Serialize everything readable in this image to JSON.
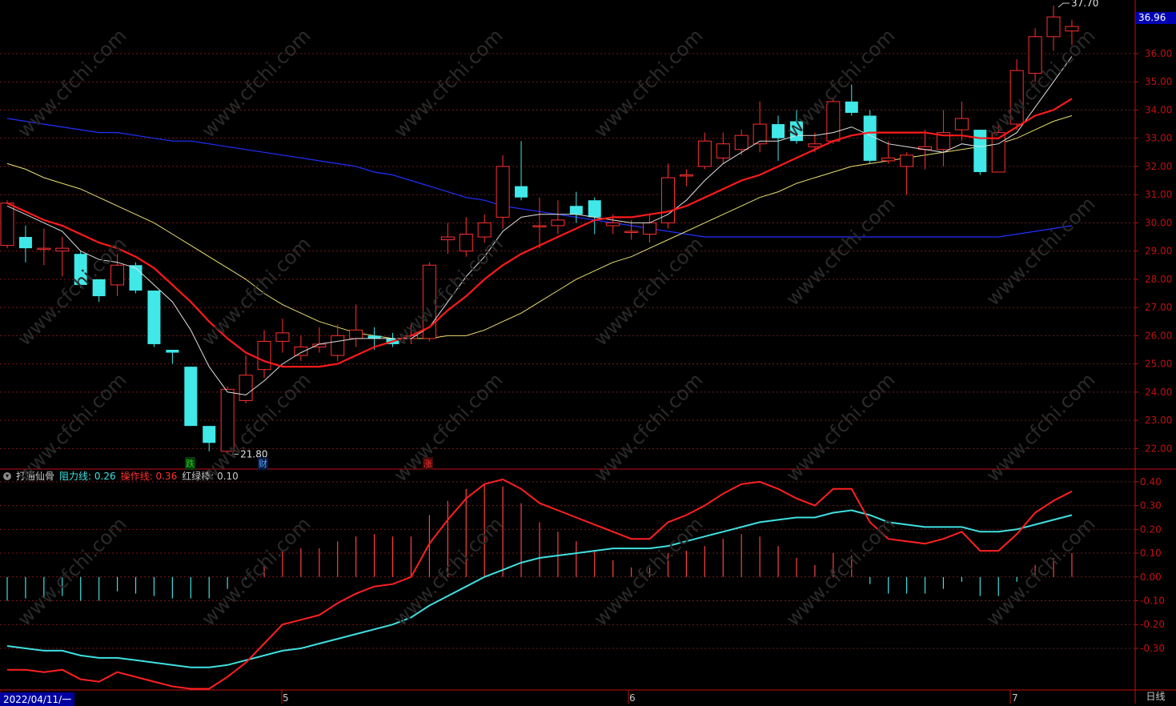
{
  "chart_data": {
    "type": "candlestick",
    "price_axis": {
      "ticks": [
        "22.00",
        "23.00",
        "24.00",
        "25.00",
        "26.00",
        "27.00",
        "28.00",
        "29.00",
        "30.00",
        "31.00",
        "32.00",
        "33.00",
        "34.00",
        "35.00",
        "36.00"
      ],
      "range": [
        21.3,
        37.9
      ]
    },
    "candles": [
      {
        "o": 29.2,
        "c": 30.7,
        "h": 30.8,
        "l": 29.1
      },
      {
        "o": 29.5,
        "c": 29.1,
        "h": 29.9,
        "l": 28.6
      },
      {
        "o": 29.1,
        "c": 29.1,
        "h": 29.8,
        "l": 28.5
      },
      {
        "o": 29.0,
        "c": 29.1,
        "h": 29.5,
        "l": 28.1
      },
      {
        "o": 28.9,
        "c": 27.8,
        "h": 29.0,
        "l": 27.7
      },
      {
        "o": 28.0,
        "c": 27.4,
        "h": 28.0,
        "l": 27.2
      },
      {
        "o": 27.8,
        "c": 28.5,
        "h": 28.9,
        "l": 27.4
      },
      {
        "o": 28.5,
        "c": 27.6,
        "h": 28.6,
        "l": 27.5
      },
      {
        "o": 27.6,
        "c": 25.7,
        "h": 27.6,
        "l": 25.6
      },
      {
        "o": 25.5,
        "c": 25.4,
        "h": 25.5,
        "l": 25.0
      },
      {
        "o": 24.9,
        "c": 22.8,
        "h": 24.9,
        "l": 22.8
      },
      {
        "o": 22.8,
        "c": 22.2,
        "h": 22.8,
        "l": 21.9
      },
      {
        "o": 21.9,
        "c": 24.1,
        "h": 24.2,
        "l": 21.8
      },
      {
        "o": 23.7,
        "c": 24.6,
        "h": 25.3,
        "l": 23.6
      },
      {
        "o": 24.8,
        "c": 25.8,
        "h": 26.2,
        "l": 24.5
      },
      {
        "o": 25.8,
        "c": 26.1,
        "h": 26.6,
        "l": 25.4
      },
      {
        "o": 25.3,
        "c": 25.6,
        "h": 26.0,
        "l": 25.1
      },
      {
        "o": 25.6,
        "c": 25.7,
        "h": 26.3,
        "l": 25.4
      },
      {
        "o": 25.3,
        "c": 26.0,
        "h": 26.4,
        "l": 25.1
      },
      {
        "o": 25.9,
        "c": 26.2,
        "h": 27.1,
        "l": 25.6
      },
      {
        "o": 26.0,
        "c": 25.9,
        "h": 26.3,
        "l": 25.5
      },
      {
        "o": 25.9,
        "c": 25.7,
        "h": 26.1,
        "l": 25.6
      },
      {
        "o": 25.9,
        "c": 26.0,
        "h": 26.4,
        "l": 25.7
      },
      {
        "o": 25.9,
        "c": 28.5,
        "h": 28.6,
        "l": 25.8
      },
      {
        "o": 29.4,
        "c": 29.5,
        "h": 30.0,
        "l": 28.9
      },
      {
        "o": 29.0,
        "c": 29.6,
        "h": 30.2,
        "l": 28.8
      },
      {
        "o": 29.5,
        "c": 30.0,
        "h": 30.3,
        "l": 29.3
      },
      {
        "o": 30.2,
        "c": 32.0,
        "h": 32.4,
        "l": 29.8
      },
      {
        "o": 31.3,
        "c": 30.9,
        "h": 32.9,
        "l": 30.8
      },
      {
        "o": 29.9,
        "c": 29.9,
        "h": 30.9,
        "l": 29.1
      },
      {
        "o": 29.9,
        "c": 30.1,
        "h": 30.8,
        "l": 29.6
      },
      {
        "o": 30.6,
        "c": 30.3,
        "h": 31.1,
        "l": 30.0
      },
      {
        "o": 30.8,
        "c": 30.2,
        "h": 30.9,
        "l": 29.6
      },
      {
        "o": 29.9,
        "c": 30.0,
        "h": 30.3,
        "l": 29.6
      },
      {
        "o": 29.7,
        "c": 29.7,
        "h": 30.1,
        "l": 29.4
      },
      {
        "o": 29.6,
        "c": 30.0,
        "h": 30.3,
        "l": 29.3
      },
      {
        "o": 30.0,
        "c": 31.6,
        "h": 32.1,
        "l": 29.8
      },
      {
        "o": 31.7,
        "c": 31.7,
        "h": 31.9,
        "l": 31.3
      },
      {
        "o": 32.0,
        "c": 32.9,
        "h": 33.2,
        "l": 31.9
      },
      {
        "o": 32.3,
        "c": 32.8,
        "h": 33.2,
        "l": 32.1
      },
      {
        "o": 32.6,
        "c": 33.1,
        "h": 33.3,
        "l": 32.4
      },
      {
        "o": 32.8,
        "c": 33.5,
        "h": 34.3,
        "l": 32.5
      },
      {
        "o": 33.5,
        "c": 33.0,
        "h": 33.8,
        "l": 32.2
      },
      {
        "o": 33.6,
        "c": 32.9,
        "h": 34.0,
        "l": 32.8
      },
      {
        "o": 32.7,
        "c": 32.8,
        "h": 33.2,
        "l": 32.5
      },
      {
        "o": 32.9,
        "c": 34.3,
        "h": 34.4,
        "l": 32.8
      },
      {
        "o": 34.3,
        "c": 33.9,
        "h": 34.9,
        "l": 33.8
      },
      {
        "o": 33.8,
        "c": 32.2,
        "h": 34.0,
        "l": 32.1
      },
      {
        "o": 32.2,
        "c": 32.3,
        "h": 32.9,
        "l": 32.1
      },
      {
        "o": 32.0,
        "c": 32.4,
        "h": 32.5,
        "l": 31.0
      },
      {
        "o": 32.6,
        "c": 32.7,
        "h": 33.3,
        "l": 31.9
      },
      {
        "o": 32.6,
        "c": 33.2,
        "h": 34.0,
        "l": 32.0
      },
      {
        "o": 33.3,
        "c": 33.7,
        "h": 34.3,
        "l": 32.9
      },
      {
        "o": 33.3,
        "c": 31.8,
        "h": 33.3,
        "l": 31.7
      },
      {
        "o": 31.8,
        "c": 33.2,
        "h": 33.5,
        "l": 31.8
      },
      {
        "o": 33.5,
        "c": 35.4,
        "h": 35.8,
        "l": 33.3
      },
      {
        "o": 35.3,
        "c": 36.6,
        "h": 36.9,
        "l": 35.0
      },
      {
        "o": 36.6,
        "c": 37.3,
        "h": 37.7,
        "l": 36.1
      },
      {
        "o": 36.8,
        "c": 36.96,
        "h": 37.2,
        "l": 36.3
      }
    ],
    "ma_white": [
      30.6,
      30.3,
      30.0,
      29.7,
      29.0,
      28.7,
      28.6,
      28.4,
      27.8,
      27.2,
      26.2,
      24.9,
      24.0,
      23.9,
      24.4,
      25.0,
      25.4,
      25.7,
      25.8,
      25.9,
      25.9,
      25.9,
      25.9,
      26.3,
      27.2,
      28.1,
      28.8,
      29.7,
      30.2,
      30.3,
      30.3,
      30.3,
      30.2,
      30.1,
      30.0,
      30.0,
      30.3,
      30.8,
      31.5,
      32.1,
      32.5,
      32.9,
      32.9,
      33.1,
      33.1,
      33.2,
      33.4,
      33.1,
      32.8,
      32.7,
      32.6,
      32.5,
      32.8,
      32.7,
      32.8,
      33.2,
      34.1,
      35.0,
      35.9
    ],
    "ma_red": [
      30.7,
      30.4,
      30.1,
      29.9,
      29.6,
      29.3,
      29.1,
      28.8,
      28.4,
      27.8,
      27.2,
      26.5,
      25.9,
      25.4,
      25.1,
      24.9,
      24.9,
      24.9,
      25.0,
      25.3,
      25.6,
      25.8,
      26.0,
      26.3,
      26.9,
      27.4,
      28.0,
      28.5,
      28.9,
      29.2,
      29.5,
      29.8,
      30.1,
      30.2,
      30.2,
      30.3,
      30.4,
      30.6,
      30.9,
      31.2,
      31.5,
      31.7,
      32.0,
      32.3,
      32.6,
      32.9,
      33.1,
      33.2,
      33.2,
      33.2,
      33.2,
      33.1,
      33.1,
      33.0,
      33.0,
      33.4,
      33.8,
      34.0,
      34.4
    ],
    "ma_yellow": [
      32.1,
      31.9,
      31.6,
      31.4,
      31.2,
      30.9,
      30.6,
      30.3,
      30.0,
      29.6,
      29.2,
      28.8,
      28.4,
      28.0,
      27.5,
      27.1,
      26.8,
      26.5,
      26.3,
      26.1,
      26.0,
      25.9,
      25.9,
      25.9,
      26.0,
      26.0,
      26.2,
      26.5,
      26.8,
      27.2,
      27.6,
      28.0,
      28.3,
      28.6,
      28.8,
      29.1,
      29.4,
      29.7,
      30.0,
      30.3,
      30.6,
      30.9,
      31.1,
      31.4,
      31.6,
      31.8,
      32.0,
      32.1,
      32.2,
      32.3,
      32.4,
      32.5,
      32.6,
      32.7,
      32.8,
      33.0,
      33.3,
      33.6,
      33.8
    ],
    "ma_blue": [
      33.7,
      33.6,
      33.5,
      33.4,
      33.3,
      33.2,
      33.2,
      33.1,
      33.0,
      32.9,
      32.9,
      32.8,
      32.7,
      32.6,
      32.5,
      32.4,
      32.3,
      32.2,
      32.1,
      32.0,
      31.8,
      31.7,
      31.5,
      31.3,
      31.1,
      30.9,
      30.8,
      30.6,
      30.5,
      30.4,
      30.3,
      30.2,
      30.1,
      30.0,
      29.9,
      29.8,
      29.7,
      29.6,
      29.5,
      29.5,
      29.5,
      29.5,
      29.5,
      29.5,
      29.5,
      29.5,
      29.5,
      29.5,
      29.5,
      29.5,
      29.5,
      29.5,
      29.5,
      29.5,
      29.5,
      29.6,
      29.7,
      29.8,
      29.9
    ],
    "indicator": {
      "name": "打通仙骨",
      "ticks": [
        "0.40",
        "0.30",
        "0.20",
        "0.10",
        "0.00",
        "-0.10",
        "-0.20",
        "-0.30"
      ],
      "range": [
        -0.475,
        0.45
      ],
      "series": [
        {
          "name": "阻力线",
          "label": "阻力线:",
          "value": "0.26",
          "color": "#40e0e0",
          "values": [
            -0.29,
            -0.3,
            -0.31,
            -0.31,
            -0.33,
            -0.34,
            -0.34,
            -0.35,
            -0.36,
            -0.37,
            -0.38,
            -0.38,
            -0.37,
            -0.35,
            -0.33,
            -0.31,
            -0.3,
            -0.28,
            -0.26,
            -0.24,
            -0.22,
            -0.2,
            -0.17,
            -0.12,
            -0.08,
            -0.04,
            0.0,
            0.03,
            0.06,
            0.08,
            0.09,
            0.1,
            0.11,
            0.12,
            0.12,
            0.12,
            0.13,
            0.15,
            0.17,
            0.19,
            0.21,
            0.23,
            0.24,
            0.25,
            0.25,
            0.27,
            0.28,
            0.26,
            0.23,
            0.22,
            0.21,
            0.21,
            0.21,
            0.19,
            0.19,
            0.2,
            0.22,
            0.24,
            0.26
          ]
        },
        {
          "name": "操作线",
          "label": "操作线:",
          "value": "0.36",
          "color": "#ff2020",
          "values": [
            -0.39,
            -0.39,
            -0.4,
            -0.39,
            -0.43,
            -0.44,
            -0.4,
            -0.42,
            -0.44,
            -0.46,
            -0.47,
            -0.47,
            -0.42,
            -0.36,
            -0.28,
            -0.2,
            -0.18,
            -0.16,
            -0.11,
            -0.07,
            -0.04,
            -0.03,
            0.0,
            0.14,
            0.24,
            0.33,
            0.39,
            0.41,
            0.37,
            0.31,
            0.28,
            0.25,
            0.22,
            0.19,
            0.16,
            0.16,
            0.23,
            0.26,
            0.3,
            0.35,
            0.39,
            0.4,
            0.37,
            0.33,
            0.3,
            0.37,
            0.37,
            0.23,
            0.16,
            0.15,
            0.14,
            0.16,
            0.19,
            0.11,
            0.11,
            0.18,
            0.27,
            0.32,
            0.36
          ]
        },
        {
          "name": "红绿棒",
          "label": "红绿棒:",
          "value": "0.10",
          "color": "#c8c8c8",
          "values": [
            -0.1,
            -0.09,
            -0.09,
            -0.08,
            -0.1,
            -0.1,
            -0.06,
            -0.07,
            -0.08,
            -0.09,
            -0.09,
            -0.09,
            -0.05,
            -0.01,
            0.05,
            0.11,
            0.12,
            0.12,
            0.15,
            0.17,
            0.18,
            0.17,
            0.17,
            0.26,
            0.32,
            0.37,
            0.39,
            0.38,
            0.31,
            0.23,
            0.19,
            0.15,
            0.11,
            0.07,
            0.04,
            0.04,
            0.1,
            0.11,
            0.13,
            0.16,
            0.18,
            0.17,
            0.13,
            0.08,
            0.05,
            0.1,
            0.09,
            -0.03,
            -0.07,
            -0.07,
            -0.07,
            -0.05,
            -0.02,
            -0.08,
            -0.08,
            -0.02,
            0.05,
            0.08,
            0.1
          ]
        }
      ]
    },
    "annotations": {
      "high_label": "37.70",
      "low_label": "21.80",
      "last_price": "36.96"
    },
    "x_labels": [
      "2022/04/11/一",
      "5",
      "6",
      "7"
    ]
  },
  "markers": [
    {
      "text": "跌",
      "color": "#20d020"
    },
    {
      "text": "财",
      "color": "#4da6ff"
    },
    {
      "text": "涨",
      "color": "#ff3030"
    }
  ],
  "period": "日线",
  "watermark": "www.cfchi.com",
  "colors": {
    "up": "#ff3030",
    "down": "#40e8e8",
    "grid": "#7a1a1a",
    "axis": "#c01010",
    "text": "#c8c8c8"
  }
}
